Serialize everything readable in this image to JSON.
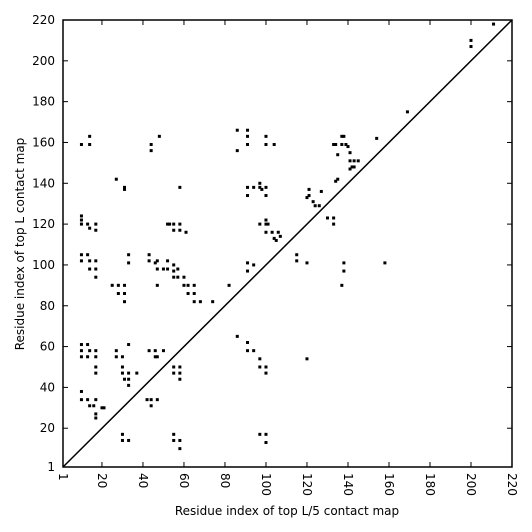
{
  "chart_data": {
    "type": "scatter",
    "xlabel": "Residue index of top L/5 contact map",
    "ylabel": "Residue index of top L contact map",
    "color": "#000000",
    "xlim": [
      1,
      220
    ],
    "ylim": [
      1,
      220
    ],
    "xticks": [
      1,
      20,
      40,
      60,
      80,
      100,
      120,
      140,
      160,
      180,
      200,
      220
    ],
    "yticks": [
      1,
      20,
      40,
      60,
      80,
      100,
      120,
      140,
      160,
      180,
      200,
      220
    ],
    "x": [
      10,
      14,
      14,
      44,
      44,
      48,
      58,
      31,
      31,
      27,
      10,
      10,
      10,
      13,
      14,
      17,
      17,
      52,
      53,
      55,
      55,
      58,
      58,
      61,
      10,
      10,
      13,
      14,
      14,
      17,
      17,
      17,
      33,
      33,
      43,
      43,
      46,
      47,
      47,
      50,
      52,
      52,
      55,
      55,
      57,
      57,
      60,
      60,
      62,
      62,
      65,
      65,
      65,
      68,
      47,
      55,
      25,
      28,
      31,
      28,
      31,
      31,
      10,
      10,
      10,
      13,
      14,
      17,
      17,
      13,
      17,
      17,
      27,
      27,
      30,
      30,
      30,
      31,
      33,
      33,
      33,
      33,
      37,
      43,
      46,
      46,
      47,
      50,
      10,
      10,
      13,
      14,
      16,
      17,
      17,
      20,
      21,
      17,
      42,
      44,
      44,
      47,
      55,
      55,
      58,
      58,
      58,
      30,
      30,
      33,
      55,
      55,
      58,
      58,
      82,
      74,
      86,
      91,
      91,
      94,
      97,
      97,
      100,
      100,
      120,
      97,
      100,
      100,
      86,
      86,
      91,
      91,
      91,
      100,
      100,
      104,
      91,
      91,
      94,
      97,
      97,
      98,
      100,
      100,
      97,
      100,
      100,
      101,
      100,
      103,
      104,
      105,
      106,
      107,
      91,
      91,
      94,
      115,
      115,
      120,
      120,
      121,
      121,
      123,
      124,
      126,
      127,
      130,
      133,
      133,
      134,
      135,
      133,
      134,
      137,
      138,
      137,
      139,
      140,
      141,
      141,
      143,
      145,
      142,
      141,
      143,
      135,
      154,
      138,
      138,
      137,
      158,
      169,
      200,
      200,
      211
    ],
    "y": [
      159,
      159,
      163,
      156,
      159,
      163,
      138,
      138,
      137,
      142,
      124,
      122,
      120,
      120,
      118,
      120,
      117,
      120,
      120,
      120,
      117,
      120,
      117,
      116,
      105,
      102,
      105,
      102,
      98,
      102,
      98,
      94,
      105,
      101,
      105,
      102,
      101,
      102,
      98,
      98,
      98,
      102,
      100,
      97,
      98,
      94,
      94,
      90,
      90,
      86,
      90,
      86,
      82,
      82,
      90,
      94,
      90,
      90,
      90,
      86,
      86,
      82,
      61,
      58,
      55,
      61,
      58,
      58,
      55,
      55,
      50,
      47,
      58,
      55,
      55,
      50,
      47,
      44,
      47,
      44,
      41,
      61,
      47,
      58,
      58,
      55,
      55,
      58,
      38,
      34,
      34,
      31,
      31,
      27,
      34,
      30,
      30,
      25,
      34,
      34,
      31,
      34,
      47,
      50,
      47,
      44,
      50,
      17,
      14,
      14,
      17,
      14,
      14,
      10,
      90,
      82,
      65,
      62,
      58,
      58,
      54,
      50,
      50,
      47,
      54,
      17,
      17,
      13,
      166,
      156,
      166,
      163,
      159,
      163,
      159,
      159,
      138,
      134,
      138,
      140,
      138,
      137,
      138,
      134,
      120,
      122,
      120,
      120,
      116,
      116,
      113,
      112,
      116,
      114,
      101,
      97,
      100,
      105,
      102,
      101,
      133,
      134,
      137,
      131,
      129,
      129,
      136,
      123,
      123,
      120,
      141,
      142,
      159,
      159,
      163,
      163,
      159,
      159,
      158,
      155,
      151,
      151,
      151,
      148,
      147,
      148,
      154,
      162,
      101,
      97,
      90,
      101,
      175,
      210,
      207,
      218
    ]
  }
}
